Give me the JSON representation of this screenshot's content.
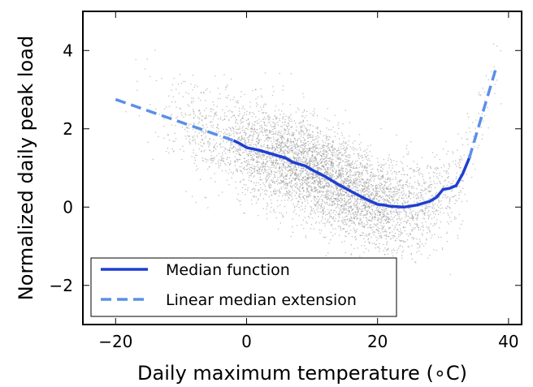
{
  "chart_data": {
    "type": "scatter",
    "xlabel": "Daily maximum temperature (∘C)",
    "ylabel": "Normalized daily peak load",
    "xlim": [
      -25,
      42
    ],
    "ylim": [
      -3,
      5
    ],
    "xticks": [
      -20,
      0,
      20,
      40
    ],
    "yticks": [
      -2,
      0,
      2,
      4
    ],
    "xtick_labels": [
      "−20",
      "0",
      "20",
      "40"
    ],
    "ytick_labels": [
      "−2",
      "0",
      "2",
      "4"
    ],
    "grid": false,
    "legend_position": "bottom-left",
    "scatter_color": "#8c8c8c",
    "series": [
      {
        "name": "Median function",
        "style": "solid",
        "color": "#1f3fd1",
        "x": [
          -2,
          -1,
          0,
          2,
          4,
          6,
          7,
          9,
          10,
          12,
          14,
          16,
          18,
          20,
          21,
          22,
          24,
          26,
          28,
          29,
          30,
          31,
          32,
          33,
          34
        ],
        "y": [
          1.7,
          1.62,
          1.52,
          1.45,
          1.35,
          1.25,
          1.15,
          1.05,
          0.95,
          0.78,
          0.58,
          0.4,
          0.22,
          0.07,
          0.05,
          0.02,
          0.0,
          0.05,
          0.15,
          0.25,
          0.45,
          0.48,
          0.55,
          0.85,
          1.25
        ]
      },
      {
        "name": "Linear median extension",
        "style": "dashed",
        "color": "#5b8fe8",
        "segments": [
          {
            "x": [
              -20,
              -2
            ],
            "y": [
              2.75,
              1.7
            ]
          },
          {
            "x": [
              34,
              38
            ],
            "y": [
              1.25,
              3.5
            ]
          }
        ]
      }
    ]
  }
}
